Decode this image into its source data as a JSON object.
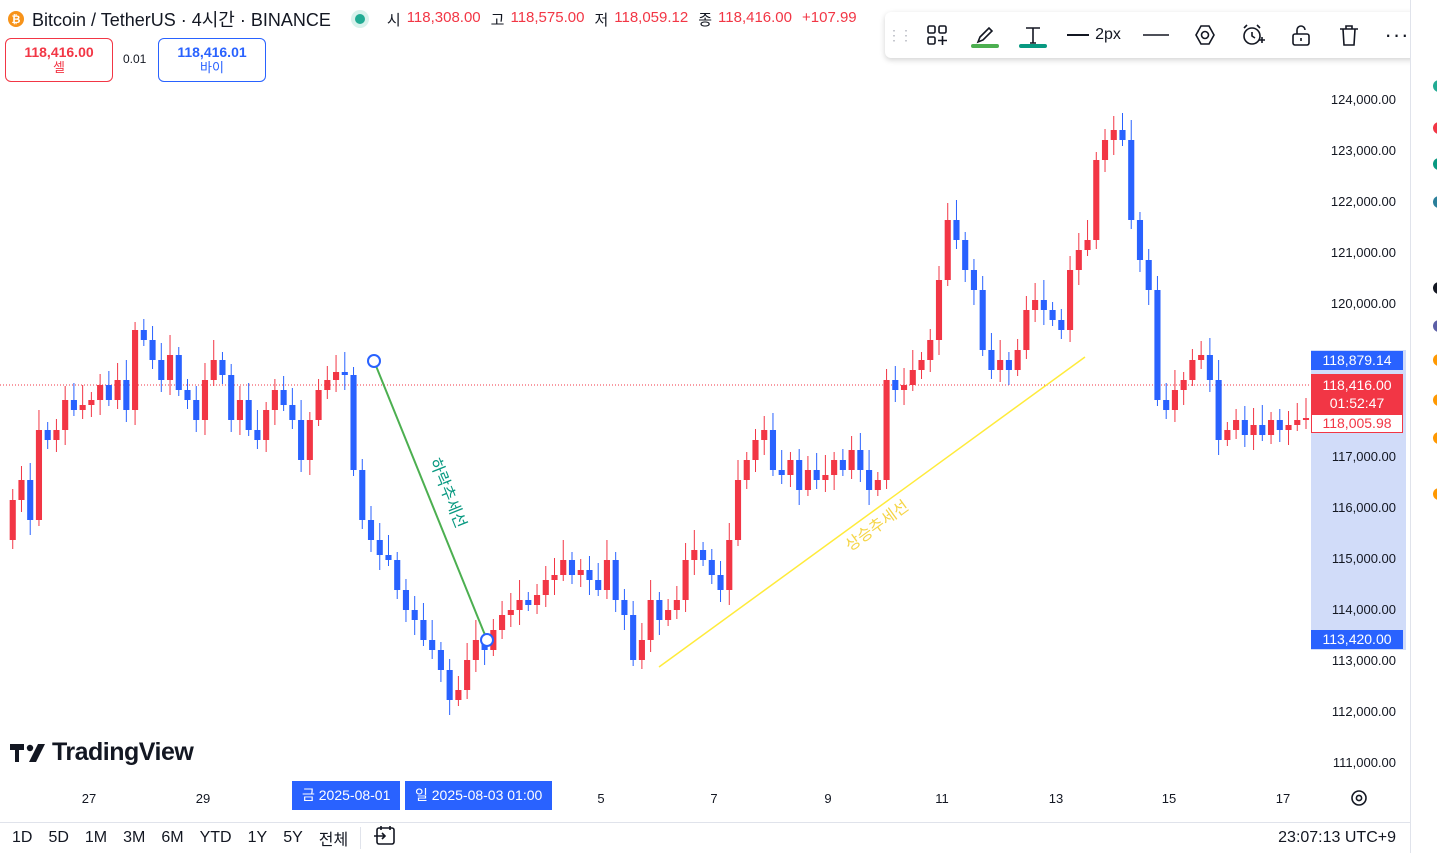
{
  "header": {
    "coin_glyph": "₿",
    "symbol": "Bitcoin",
    "quote": "TetherUS",
    "interval": "4시간",
    "exchange": "BINANCE",
    "title": "Bitcoin / TetherUS · 4시간 · BINANCE",
    "ohlc": [
      {
        "key": "시",
        "value": "118,308.00"
      },
      {
        "key": "고",
        "value": "118,575.00"
      },
      {
        "key": "저",
        "value": "118,059.12"
      },
      {
        "key": "종",
        "value": "118,416.00"
      }
    ],
    "change": "+107.99"
  },
  "trade": {
    "sell_price": "118,416.00",
    "sell_label": "셀",
    "spread": "0.01",
    "buy_price": "118,416.01",
    "buy_label": "바이"
  },
  "drawing_toolbar": {
    "width_label": "2px",
    "more_label": "···",
    "icons": [
      "drag-handle-icon",
      "objects-tree-icon",
      "pencil-icon",
      "text-icon",
      "line-width-icon",
      "line-style-icon",
      "settings-icon",
      "alert-icon",
      "lock-icon",
      "trash-icon",
      "more-icon"
    ],
    "pencil_color": "#4caf50",
    "text_color": "#089981"
  },
  "chart": {
    "price_ticks": [
      "124,000.00",
      "123,000.00",
      "122,000.00",
      "121,000.00",
      "120,000.00",
      "117,000.00",
      "116,000.00",
      "115,000.00",
      "114,000.00",
      "113,000.00",
      "112,000.00",
      "111,000.00"
    ],
    "high_badge": "118,879.14",
    "last_price": "118,416.00",
    "countdown": "01:52:47",
    "bid_badge": "118,005.98",
    "low_badge": "113,420.00",
    "time_ticks": [
      "27",
      "29",
      "5",
      "7",
      "9",
      "11",
      "13",
      "15",
      "17"
    ],
    "time_pill_1": "금 2025-08-01",
    "time_pill_2": "일 2025-08-03   01:00",
    "downtrend_label": "하락추세선",
    "uptrend_label": "상승추세선",
    "up_color": "#f23645",
    "down_color": "#2962ff",
    "downtrend_color": "#4caf50",
    "uptrend_color": "#ffeb3b",
    "logo_text": "TradingView"
  },
  "bottom_bar": {
    "ranges": [
      "1D",
      "5D",
      "1M",
      "3M",
      "6M",
      "YTD",
      "1Y",
      "5Y",
      "전체"
    ],
    "clock": "23:07:13 UTC+9"
  }
}
